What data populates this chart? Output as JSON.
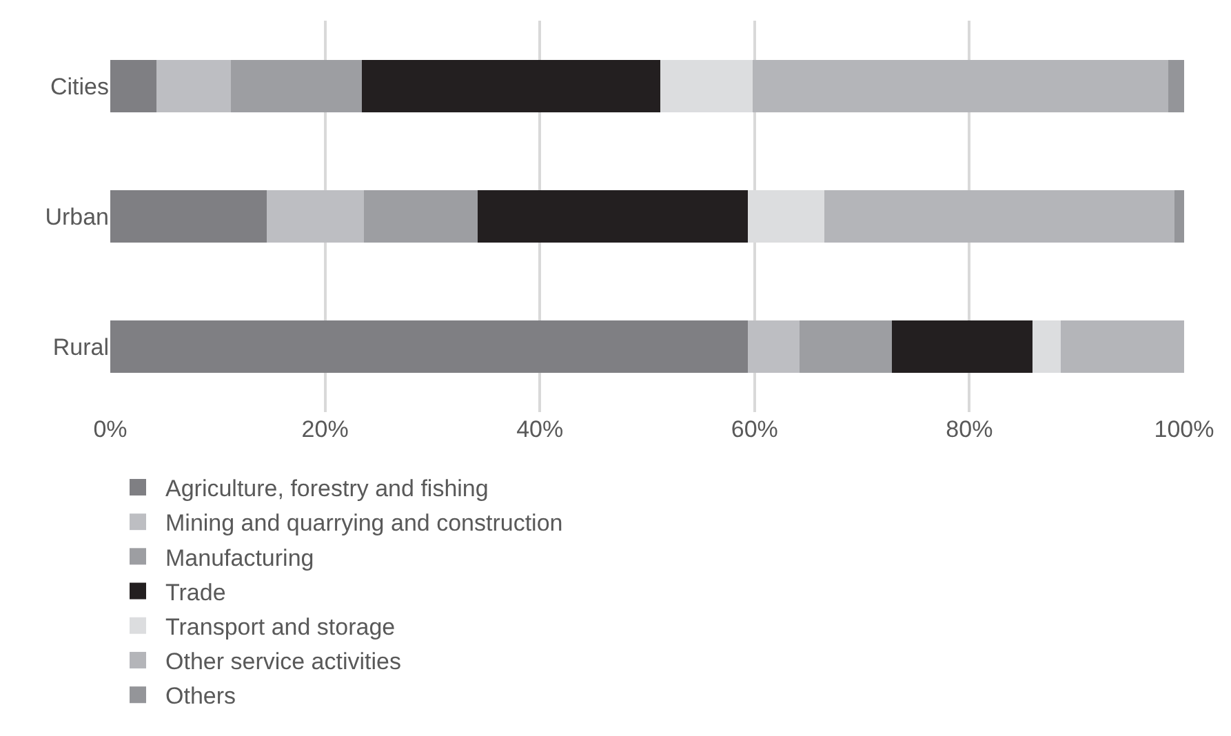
{
  "chart_data": {
    "type": "bar",
    "orientation": "horizontal",
    "stacked": true,
    "categories": [
      "Cities",
      "Urban",
      "Rural"
    ],
    "series": [
      {
        "name": "Agriculture, forestry and fishing",
        "color": "#7f7f83",
        "values": [
          4.3,
          14.6,
          59.4
        ]
      },
      {
        "name": "Mining and quarrying and construction",
        "color": "#bdbec2",
        "values": [
          6.9,
          9.0,
          4.8
        ]
      },
      {
        "name": "Manufacturing",
        "color": "#9d9ea2",
        "values": [
          12.2,
          10.6,
          8.6
        ]
      },
      {
        "name": "Trade",
        "color": "#231f20",
        "values": [
          27.8,
          25.2,
          13.1
        ]
      },
      {
        "name": "Transport and storage",
        "color": "#dcdddf",
        "values": [
          8.6,
          7.1,
          2.6
        ]
      },
      {
        "name": "Other service activities",
        "color": "#b4b5b9",
        "values": [
          38.7,
          32.6,
          11.5
        ]
      },
      {
        "name": "Others",
        "color": "#949599",
        "values": [
          1.5,
          0.9,
          0
        ]
      }
    ],
    "xlim": [
      0,
      100
    ],
    "xticks": [
      {
        "value": 0,
        "label": "0%"
      },
      {
        "value": 20,
        "label": "20%"
      },
      {
        "value": 40,
        "label": "40%"
      },
      {
        "value": 60,
        "label": "60%"
      },
      {
        "value": 80,
        "label": "80%"
      },
      {
        "value": 100,
        "label": "100%"
      }
    ],
    "grid": "x",
    "legend": "bottom"
  }
}
